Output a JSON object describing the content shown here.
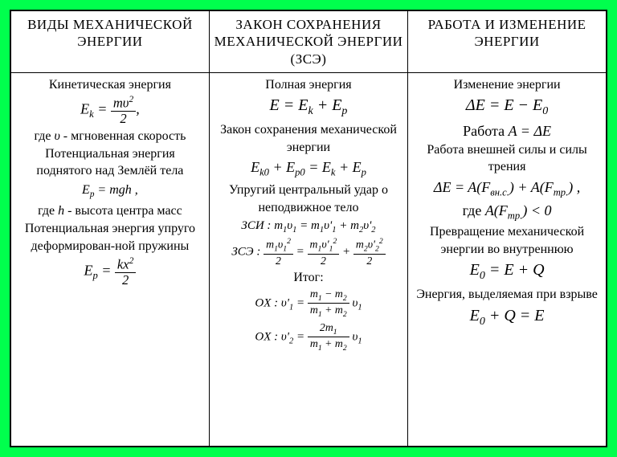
{
  "background_color": "#00ff4d",
  "table_bg": "#ffffff",
  "border_color": "#000000",
  "headers": {
    "col1": "ВИДЫ МЕХАНИЧЕСКОЙ ЭНЕРГИИ",
    "col2": "ЗАКОН СОХРАНЕНИЯ МЕХАНИЧЕСКОЙ ЭНЕРГИИ (ЗСЭ)",
    "col3": "РАБОТА И ИЗМЕНЕНИЕ ЭНЕРГИИ"
  },
  "col1": {
    "t1": "Кинетическая энергия",
    "f1_lhs": "E",
    "f1_sub": "k",
    "f1_num": "mυ",
    "f1_sup": "2",
    "f1_den": "2",
    "f1_comma": ",",
    "t2a": "где ",
    "t2v": "υ",
    "t2b": " - мгновенная скорость",
    "t3": "Потенциальная энергия поднятого над Землёй тела",
    "f2": "E",
    "f2_sub": "p",
    "f2_rhs": " = mgh",
    "f2_comma": " ,",
    "t4a": "где ",
    "t4v": "h",
    "t4b": " - высота центра масс",
    "t5": "Потенциальная энергия упруго деформирован-ной пружины",
    "f3_lhs": "E",
    "f3_sub": "p",
    "f3_num": "kx",
    "f3_sup": "2",
    "f3_den": "2"
  },
  "col2": {
    "t1": "Полная энергия",
    "f1": "E = E",
    "f1_k": "k",
    "f1_plus": " + E",
    "f1_p": "p",
    "t2": "Закон сохранения механической энергии",
    "f2_a": "E",
    "f2_k0": "k0",
    "f2_b": " + E",
    "f2_p0": "p0",
    "f2_c": " = E",
    "f2_k": "k",
    "f2_d": " + E",
    "f2_p": "p",
    "t3": "Упругий центральный удар о неподвижное тело",
    "f3_lbl": "ЗСИ : ",
    "f3": "m",
    "f3_1": "1",
    "f3_v": "υ",
    "f3_eq": " = m",
    "f3_v1p": "υ'",
    "f3_plus": " + m",
    "f3_2": "2",
    "f3_v2p": "υ'",
    "f4_lbl": "ЗСЭ : ",
    "f4_n1": "m",
    "f4_1": "1",
    "f4_v": "υ",
    "f4_sq": "2",
    "f4_den": "2",
    "f4_eq": " = ",
    "f4_n2": "m",
    "f4_v1p": "υ'",
    "f4_plus": " + ",
    "f4_n3": "m",
    "f4_2": "2",
    "f4_v2p": "υ'",
    "t4": "Итог:",
    "f5_lbl": "OX : υ'",
    "f5_1": "1",
    "f5_eq": " = ",
    "f5_num": "m",
    "f5_minus": " − m",
    "f5_2": "2",
    "f5_den": "m",
    "f5_dplus": " + m",
    "f5_v": "υ",
    "f6_lbl": "OX : υ'",
    "f6_2": "2",
    "f6_eq": " = ",
    "f6_num": "2m",
    "f6_1": "1",
    "f6_den": "m",
    "f6_dplus": " + m",
    "f6_v": "υ"
  },
  "col3": {
    "t1": "Изменение энергии",
    "f1": "ΔE = E − E",
    "f1_0": "0",
    "t2a": "Работа  ",
    "f2": "A = ΔE",
    "t3": "Работа внешней силы и силы трения",
    "f3a": "ΔE = A(F",
    "f3_vn": "вн.с.",
    "f3b": ") + A(F",
    "f3_tr": "тр.",
    "f3c": ") ,",
    "t4a": "где  ",
    "f4": "A(F",
    "f4_tr": "тр.",
    "f4b": ") < 0",
    "t5": "Превращение механической энергии во внутреннюю",
    "f5": "E",
    "f5_0": "0",
    "f5b": " = E + Q",
    "t6": "Энергия, выделяемая при взрыве",
    "f6": "E",
    "f6_0": "0",
    "f6b": " + Q = E"
  }
}
